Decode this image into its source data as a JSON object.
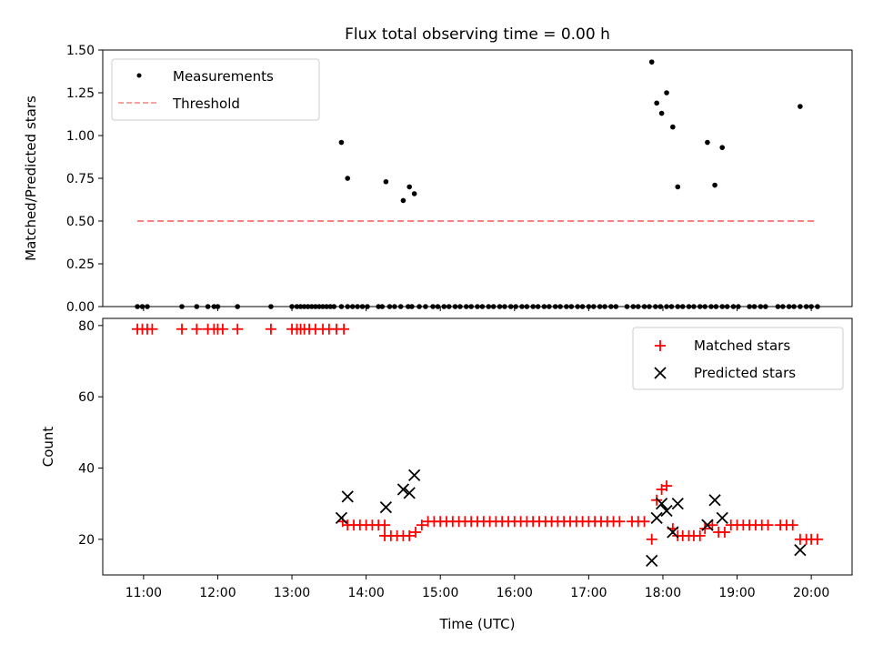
{
  "figure": {
    "title": "Flux total observing time = 0.00 h"
  },
  "chart_data": [
    {
      "type": "scatter",
      "panel": "top",
      "title": "Flux total observing time = 0.00 h",
      "xlabel": "",
      "ylabel": "Matched/Predicted stars",
      "xlim": [
        "10:27",
        "20:33"
      ],
      "ylim": [
        0,
        1.5
      ],
      "yticks": [
        "0.00",
        "0.25",
        "0.50",
        "0.75",
        "1.00",
        "1.25",
        "1.50"
      ],
      "legend": {
        "placement": "top-left",
        "entries": [
          "Measurements",
          "Threshold"
        ]
      },
      "threshold": {
        "name": "Threshold",
        "value": 0.5,
        "x_range": [
          "10:55",
          "20:05"
        ],
        "color": "#ff8080",
        "style": "dashed"
      },
      "series": [
        {
          "name": "Measurements",
          "color": "#000000",
          "marker": "dot",
          "x": [
            "10:55",
            "10:59",
            "11:03",
            "11:31",
            "11:43",
            "11:52",
            "11:57",
            "12:00",
            "12:16",
            "12:43",
            "13:00",
            "13:04",
            "13:07",
            "13:10",
            "13:13",
            "13:16",
            "13:19",
            "13:22",
            "13:25",
            "13:28",
            "13:31",
            "13:34",
            "13:40",
            "13:45",
            "13:49",
            "13:53",
            "13:57",
            "14:01",
            "14:10",
            "14:13",
            "14:19",
            "14:23",
            "14:28",
            "14:34",
            "14:37",
            "14:43",
            "14:48",
            "14:54",
            "14:58",
            "15:03",
            "15:07",
            "15:12",
            "15:16",
            "15:21",
            "15:25",
            "15:30",
            "15:34",
            "15:39",
            "15:43",
            "15:48",
            "15:52",
            "15:57",
            "16:01",
            "16:06",
            "16:10",
            "16:15",
            "16:19",
            "16:24",
            "16:28",
            "16:33",
            "16:37",
            "16:42",
            "16:46",
            "16:51",
            "16:55",
            "17:00",
            "17:04",
            "17:09",
            "17:13",
            "17:18",
            "17:22",
            "17:31",
            "17:36",
            "17:40",
            "17:45",
            "17:49",
            "17:54",
            "17:58",
            "18:03",
            "18:07",
            "18:12",
            "18:16",
            "18:21",
            "18:25",
            "18:30",
            "18:34",
            "18:39",
            "18:43",
            "18:48",
            "18:52",
            "18:57",
            "19:01",
            "19:10",
            "19:14",
            "19:19",
            "19:23",
            "19:33",
            "19:37",
            "19:42",
            "19:46",
            "19:51",
            "19:56",
            "20:00",
            "20:05"
          ],
          "y": [
            0,
            0,
            0,
            0,
            0,
            0,
            0,
            0,
            0,
            0,
            0,
            0,
            0,
            0,
            0,
            0,
            0,
            0,
            0,
            0,
            0,
            0,
            0,
            0,
            0,
            0,
            0,
            0,
            0,
            0,
            0,
            0,
            0,
            0,
            0,
            0,
            0,
            0,
            0,
            0,
            0,
            0,
            0,
            0,
            0,
            0,
            0,
            0,
            0,
            0,
            0,
            0,
            0,
            0,
            0,
            0,
            0,
            0,
            0,
            0,
            0,
            0,
            0,
            0,
            0,
            0,
            0,
            0,
            0,
            0,
            0,
            0,
            0,
            0,
            0,
            0,
            0,
            0,
            0,
            0,
            0,
            0,
            0,
            0,
            0,
            0,
            0,
            0,
            0,
            0,
            0,
            0,
            0,
            0,
            0,
            0,
            0,
            0,
            0,
            0,
            0,
            0,
            0,
            0
          ]
        },
        {
          "name": "Measurements",
          "color": "#000000",
          "marker": "dot",
          "x": [
            "13:40",
            "13:45",
            "14:16",
            "14:30",
            "14:35",
            "14:39",
            "17:51",
            "17:55",
            "17:59",
            "18:03",
            "18:08",
            "18:12",
            "18:36",
            "18:42",
            "18:48"
          ],
          "y": [
            0.96,
            0.75,
            0.73,
            0.62,
            0.7,
            0.66,
            1.43,
            1.19,
            1.13,
            1.25,
            1.05,
            0.7,
            0.96,
            0.71,
            0.93
          ]
        },
        {
          "name": "Measurements",
          "color": "#000000",
          "marker": "dot",
          "x": [
            "19:51"
          ],
          "y": [
            1.17
          ]
        }
      ]
    },
    {
      "type": "scatter",
      "panel": "bottom",
      "title": "",
      "xlabel": "Time (UTC)",
      "ylabel": "Count",
      "xlim": [
        "10:27",
        "20:33"
      ],
      "ylim": [
        10,
        82
      ],
      "xticks": [
        "11:00",
        "12:00",
        "13:00",
        "14:00",
        "15:00",
        "16:00",
        "17:00",
        "18:00",
        "19:00",
        "20:00"
      ],
      "yticks": [
        "20",
        "40",
        "60",
        "80"
      ],
      "legend": {
        "placement": "top-right",
        "entries": [
          "Matched stars",
          "Predicted stars"
        ]
      },
      "series": [
        {
          "name": "Matched stars",
          "color": "#ff0000",
          "marker": "plus",
          "x": [
            "10:55",
            "10:59",
            "11:03",
            "11:07",
            "11:31",
            "11:43",
            "11:52",
            "11:57",
            "12:00",
            "12:04",
            "12:16",
            "12:43",
            "13:00",
            "13:04",
            "13:07",
            "13:10",
            "13:14",
            "13:19",
            "13:25",
            "13:30",
            "13:36",
            "13:42",
            "13:41",
            "13:45",
            "13:50",
            "13:55",
            "14:00",
            "14:05",
            "14:10",
            "14:15",
            "14:15",
            "14:20",
            "14:25",
            "14:30",
            "14:35",
            "14:40",
            "14:45",
            "14:50",
            "14:55",
            "15:00",
            "15:05",
            "15:10",
            "15:15",
            "15:20",
            "15:25",
            "15:30",
            "15:35",
            "15:40",
            "15:45",
            "15:50",
            "15:55",
            "16:00",
            "16:05",
            "16:10",
            "16:15",
            "16:20",
            "16:25",
            "16:30",
            "16:35",
            "16:40",
            "16:45",
            "16:50",
            "16:55",
            "17:00",
            "17:05",
            "17:10",
            "17:15",
            "17:20",
            "17:25",
            "17:35",
            "17:40",
            "17:45",
            "17:51",
            "17:55",
            "17:59",
            "18:03",
            "18:08",
            "18:12",
            "18:16",
            "18:21",
            "18:25",
            "18:30",
            "18:34",
            "18:40",
            "18:45",
            "18:50",
            "18:55",
            "19:00",
            "19:05",
            "19:10",
            "19:15",
            "19:20",
            "19:25",
            "19:35",
            "19:40",
            "19:45",
            "19:51",
            "19:56",
            "20:00",
            "20:05"
          ],
          "y": [
            79,
            79,
            79,
            79,
            79,
            79,
            79,
            79,
            79,
            79,
            79,
            79,
            79,
            79,
            79,
            79,
            79,
            79,
            79,
            79,
            79,
            79,
            25,
            24,
            24,
            24,
            24,
            24,
            24,
            24,
            21,
            21,
            21,
            21,
            21,
            22,
            24,
            25,
            25,
            25,
            25,
            25,
            25,
            25,
            25,
            25,
            25,
            25,
            25,
            25,
            25,
            25,
            25,
            25,
            25,
            25,
            25,
            25,
            25,
            25,
            25,
            25,
            25,
            25,
            25,
            25,
            25,
            25,
            25,
            25,
            25,
            25,
            20,
            31,
            34,
            35,
            23,
            21,
            21,
            21,
            21,
            21,
            23,
            24,
            22,
            22,
            24,
            24,
            24,
            24,
            24,
            24,
            24,
            24,
            24,
            24,
            20,
            20,
            20,
            20
          ]
        },
        {
          "name": "Predicted stars",
          "color": "#000000",
          "marker": "x",
          "x": [
            "13:40",
            "13:45",
            "14:16",
            "14:30",
            "14:35",
            "14:39",
            "17:51",
            "17:55",
            "17:59",
            "18:03",
            "18:08",
            "18:12",
            "18:36",
            "18:42",
            "18:48",
            "19:51"
          ],
          "y": [
            26,
            32,
            29,
            34,
            33,
            38,
            14,
            26,
            30,
            28,
            22,
            30,
            24,
            31,
            26,
            17
          ]
        }
      ]
    }
  ]
}
